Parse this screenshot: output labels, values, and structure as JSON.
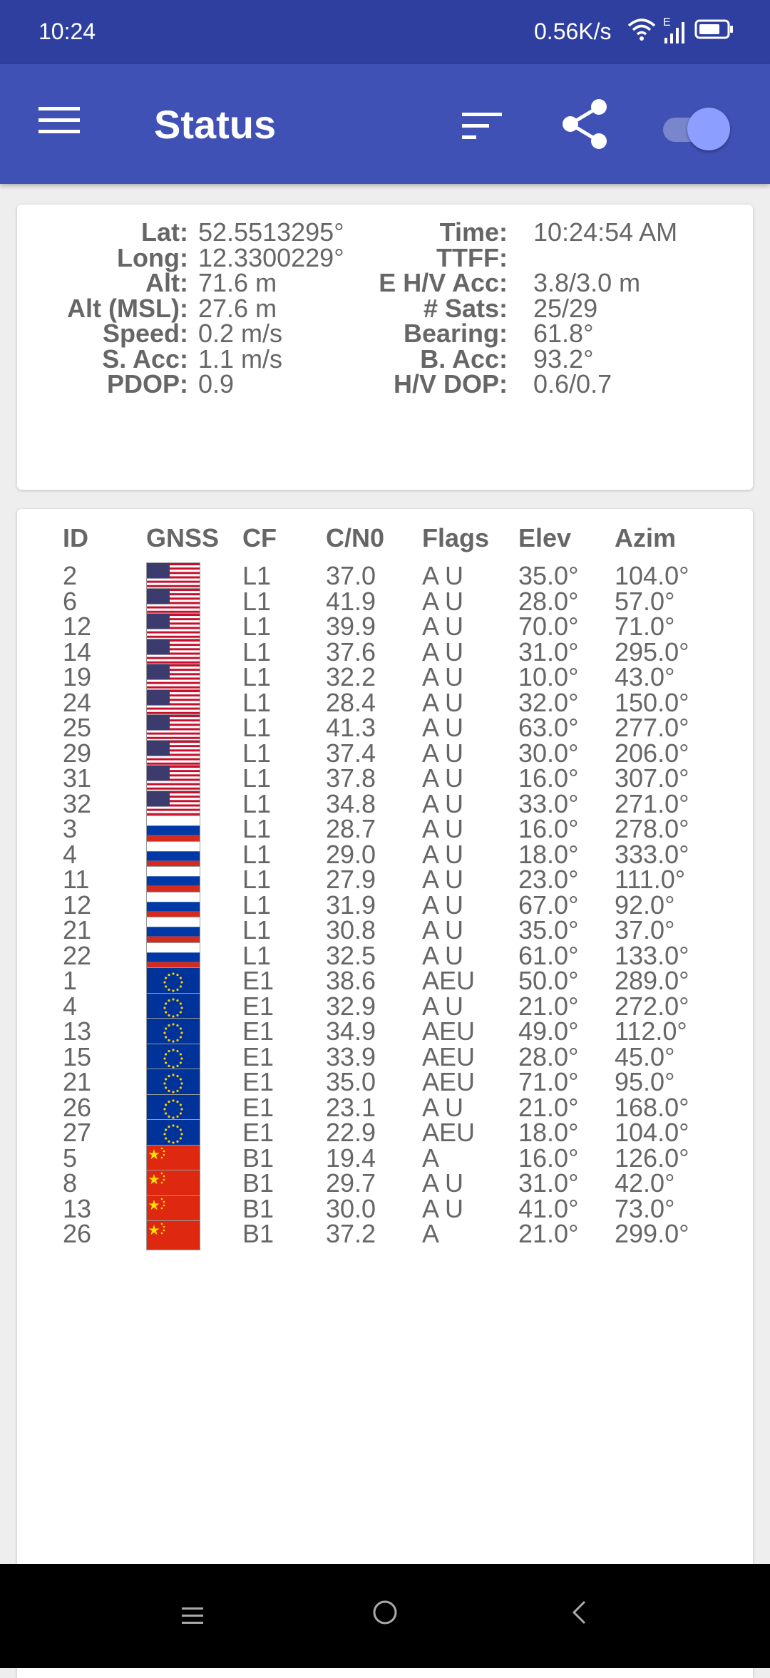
{
  "status_bar": {
    "time": "10:24",
    "net_speed": "0.56K/s",
    "network_type": "E"
  },
  "app_bar": {
    "title": "Status"
  },
  "location": [
    {
      "l1": "Lat:",
      "v1": "52.5513295°",
      "l2": "Time:",
      "v2": "10:24:54 AM"
    },
    {
      "l1": "Long:",
      "v1": "12.3300229°",
      "l2": "TTFF:",
      "v2": ""
    },
    {
      "l1": "Alt:",
      "v1": "71.6 m",
      "l2": "E H/V Acc:",
      "v2": "3.8/3.0 m"
    },
    {
      "l1": "Alt (MSL):",
      "v1": "27.6 m",
      "l2": "# Sats:",
      "v2": "25/29"
    },
    {
      "l1": "Speed:",
      "v1": "0.2 m/s",
      "l2": "Bearing:",
      "v2": "61.8°"
    },
    {
      "l1": "S. Acc:",
      "v1": "1.1 m/s",
      "l2": "B. Acc:",
      "v2": "93.2°"
    },
    {
      "l1": "PDOP:",
      "v1": "0.9",
      "l2": "H/V DOP:",
      "v2": "0.6/0.7"
    }
  ],
  "table": {
    "headers": {
      "id": "ID",
      "gnss": "GNSS",
      "cf": "CF",
      "cn0": "C/N0",
      "flags": "Flags",
      "elev": "Elev",
      "azim": "Azim"
    },
    "rows": [
      {
        "id": "2",
        "flag": "us",
        "cf": "L1",
        "cn0": "37.0",
        "flags": "A U",
        "elev": "35.0°",
        "azim": "104.0°"
      },
      {
        "id": "6",
        "flag": "us",
        "cf": "L1",
        "cn0": "41.9",
        "flags": "A U",
        "elev": "28.0°",
        "azim": "57.0°"
      },
      {
        "id": "12",
        "flag": "us",
        "cf": "L1",
        "cn0": "39.9",
        "flags": "A U",
        "elev": "70.0°",
        "azim": "71.0°"
      },
      {
        "id": "14",
        "flag": "us",
        "cf": "L1",
        "cn0": "37.6",
        "flags": "A U",
        "elev": "31.0°",
        "azim": "295.0°"
      },
      {
        "id": "19",
        "flag": "us",
        "cf": "L1",
        "cn0": "32.2",
        "flags": "A U",
        "elev": "10.0°",
        "azim": "43.0°"
      },
      {
        "id": "24",
        "flag": "us",
        "cf": "L1",
        "cn0": "28.4",
        "flags": "A U",
        "elev": "32.0°",
        "azim": "150.0°"
      },
      {
        "id": "25",
        "flag": "us",
        "cf": "L1",
        "cn0": "41.3",
        "flags": "A U",
        "elev": "63.0°",
        "azim": "277.0°"
      },
      {
        "id": "29",
        "flag": "us",
        "cf": "L1",
        "cn0": "37.4",
        "flags": "A U",
        "elev": "30.0°",
        "azim": "206.0°"
      },
      {
        "id": "31",
        "flag": "us",
        "cf": "L1",
        "cn0": "37.8",
        "flags": "A U",
        "elev": "16.0°",
        "azim": "307.0°"
      },
      {
        "id": "32",
        "flag": "us",
        "cf": "L1",
        "cn0": "34.8",
        "flags": "A U",
        "elev": "33.0°",
        "azim": "271.0°"
      },
      {
        "id": "3",
        "flag": "ru",
        "cf": "L1",
        "cn0": "28.7",
        "flags": "A U",
        "elev": "16.0°",
        "azim": "278.0°"
      },
      {
        "id": "4",
        "flag": "ru",
        "cf": "L1",
        "cn0": "29.0",
        "flags": "A U",
        "elev": "18.0°",
        "azim": "333.0°"
      },
      {
        "id": "11",
        "flag": "ru",
        "cf": "L1",
        "cn0": "27.9",
        "flags": "A U",
        "elev": "23.0°",
        "azim": "111.0°"
      },
      {
        "id": "12",
        "flag": "ru",
        "cf": "L1",
        "cn0": "31.9",
        "flags": "A U",
        "elev": "67.0°",
        "azim": "92.0°"
      },
      {
        "id": "21",
        "flag": "ru",
        "cf": "L1",
        "cn0": "30.8",
        "flags": "A U",
        "elev": "35.0°",
        "azim": "37.0°"
      },
      {
        "id": "22",
        "flag": "ru",
        "cf": "L1",
        "cn0": "32.5",
        "flags": "A U",
        "elev": "61.0°",
        "azim": "133.0°"
      },
      {
        "id": "1",
        "flag": "eu",
        "cf": "E1",
        "cn0": "38.6",
        "flags": "AEU",
        "elev": "50.0°",
        "azim": "289.0°"
      },
      {
        "id": "4",
        "flag": "eu",
        "cf": "E1",
        "cn0": "32.9",
        "flags": "A U",
        "elev": "21.0°",
        "azim": "272.0°"
      },
      {
        "id": "13",
        "flag": "eu",
        "cf": "E1",
        "cn0": "34.9",
        "flags": "AEU",
        "elev": "49.0°",
        "azim": "112.0°"
      },
      {
        "id": "15",
        "flag": "eu",
        "cf": "E1",
        "cn0": "33.9",
        "flags": "AEU",
        "elev": "28.0°",
        "azim": "45.0°"
      },
      {
        "id": "21",
        "flag": "eu",
        "cf": "E1",
        "cn0": "35.0",
        "flags": "AEU",
        "elev": "71.0°",
        "azim": "95.0°"
      },
      {
        "id": "26",
        "flag": "eu",
        "cf": "E1",
        "cn0": "23.1",
        "flags": "A U",
        "elev": "21.0°",
        "azim": "168.0°"
      },
      {
        "id": "27",
        "flag": "eu",
        "cf": "E1",
        "cn0": "22.9",
        "flags": "AEU",
        "elev": "18.0°",
        "azim": "104.0°"
      },
      {
        "id": "5",
        "flag": "cn",
        "cf": "B1",
        "cn0": "19.4",
        "flags": "A",
        "elev": "16.0°",
        "azim": "126.0°"
      },
      {
        "id": "8",
        "flag": "cn",
        "cf": "B1",
        "cn0": "29.7",
        "flags": "A U",
        "elev": "31.0°",
        "azim": "42.0°"
      },
      {
        "id": "13",
        "flag": "cn",
        "cf": "B1",
        "cn0": "30.0",
        "flags": "A U",
        "elev": "41.0°",
        "azim": "73.0°"
      },
      {
        "id": "26",
        "flag": "cn",
        "cf": "B1",
        "cn0": "37.2",
        "flags": "A",
        "elev": "21.0°",
        "azim": "299.0°"
      }
    ]
  },
  "colors": {
    "primary": "#3f51b5",
    "primary_dark": "#2f3f9f",
    "accent": "#8c9eff",
    "text": "#666666"
  },
  "icons": [
    "menu-icon",
    "sort-icon",
    "share-icon",
    "wifi-icon",
    "signal-icon",
    "battery-icon",
    "nav-menu-icon",
    "nav-home-icon",
    "nav-back-icon"
  ]
}
